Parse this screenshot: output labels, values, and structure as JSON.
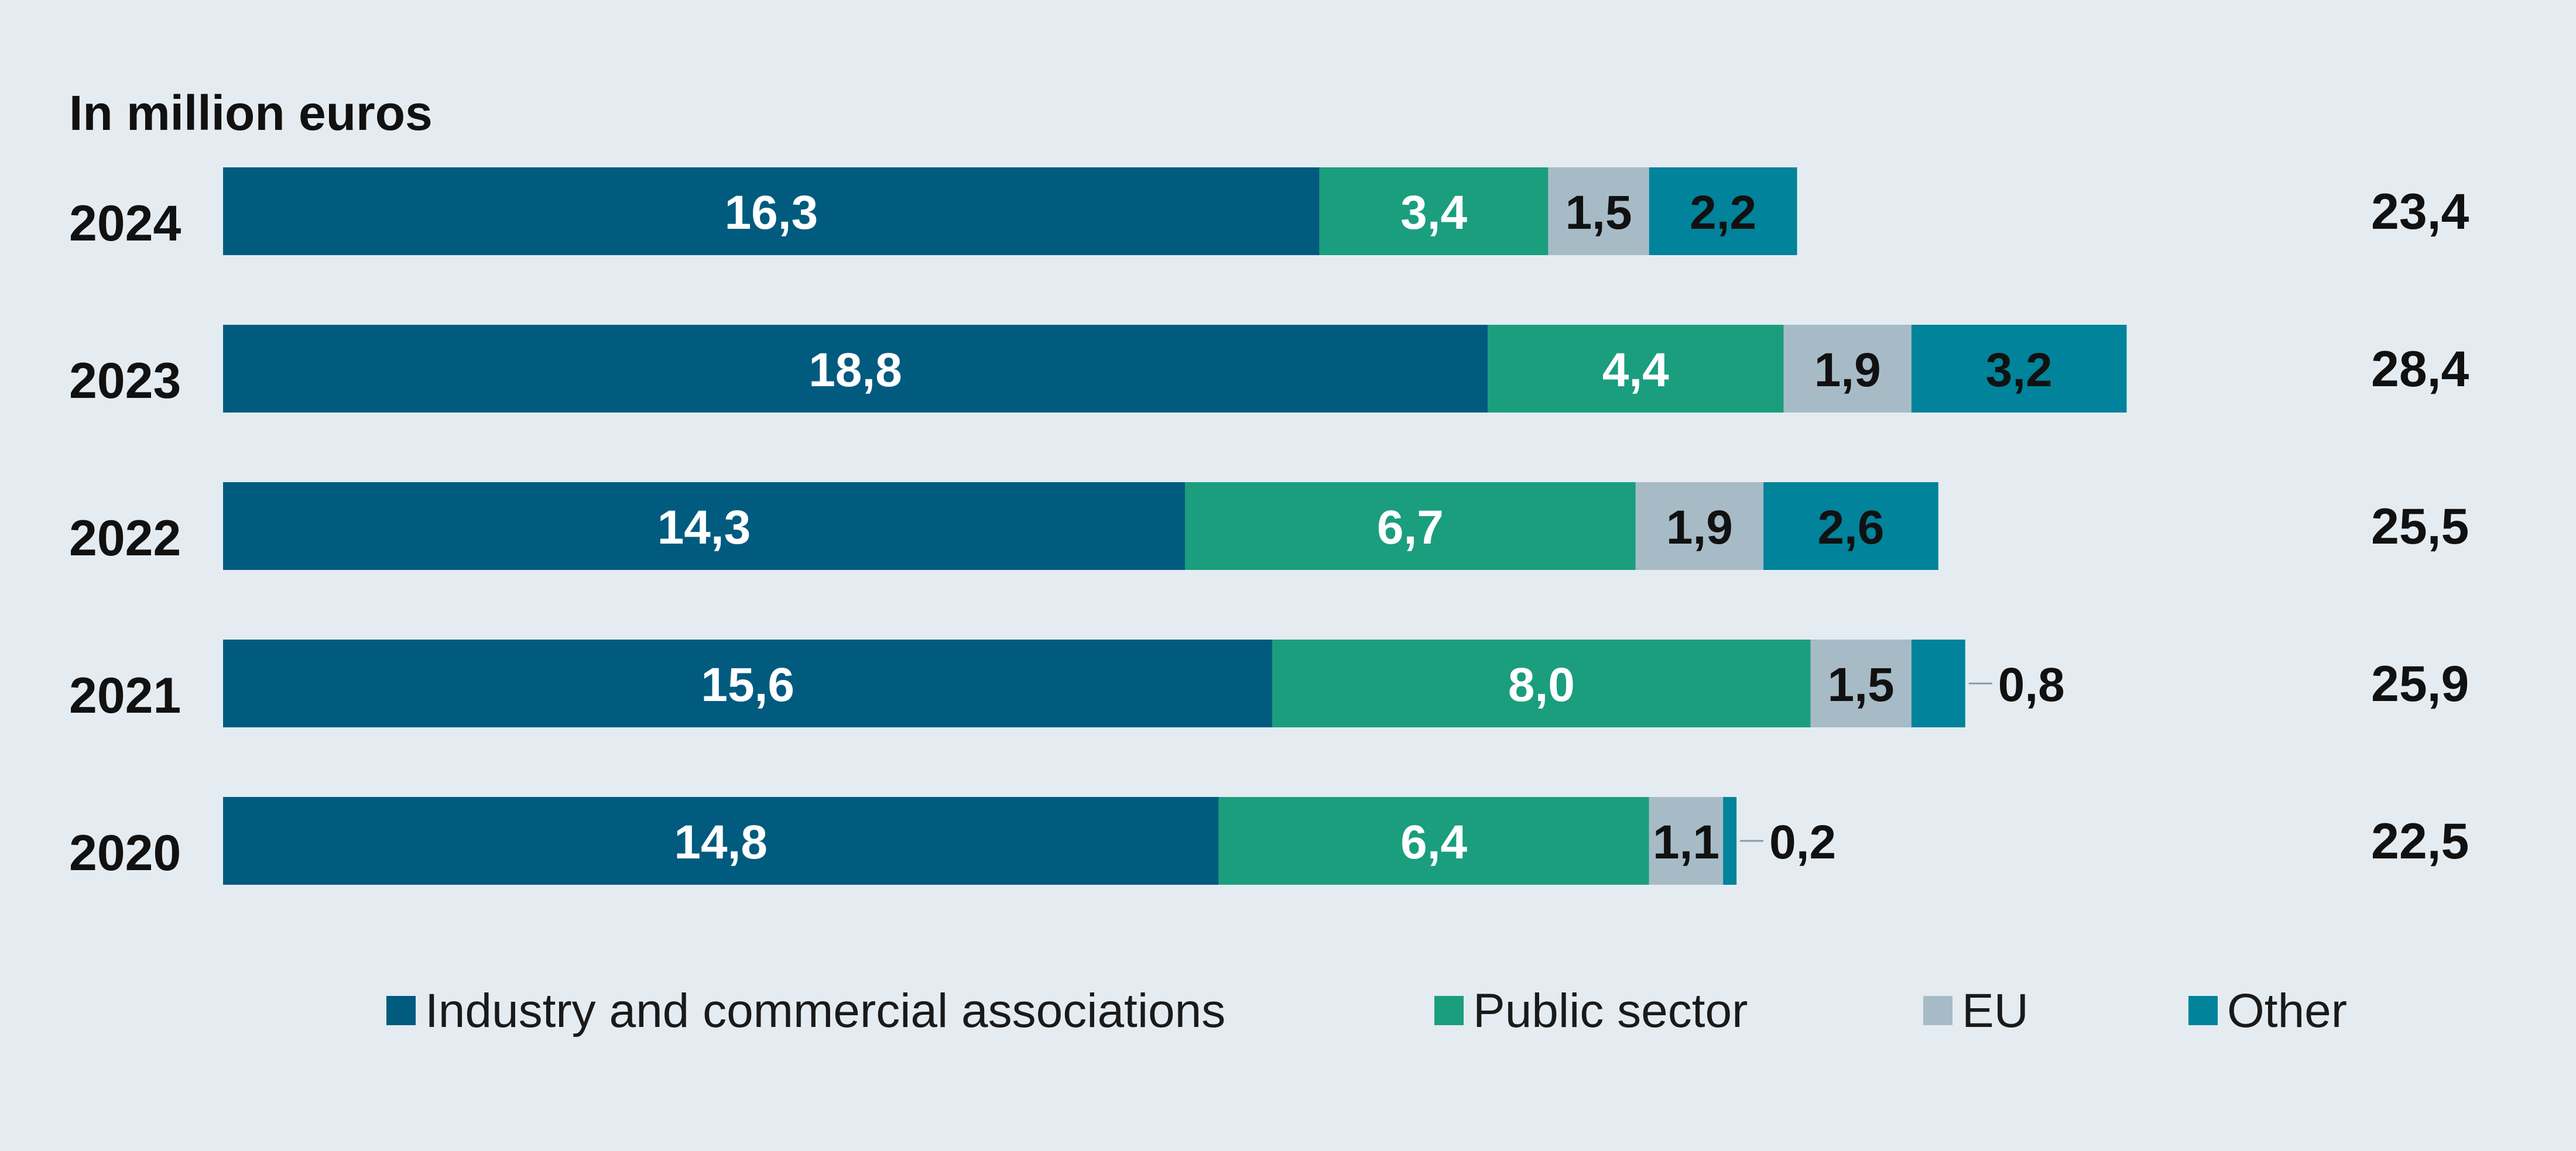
{
  "chart_data": {
    "type": "bar",
    "orientation": "horizontal",
    "stacked": true,
    "unit_label": "In million euros",
    "decimal_separator": ",",
    "categories": [
      "2024",
      "2023",
      "2022",
      "2021",
      "2020"
    ],
    "series": [
      {
        "name": "Industry and commercial associations",
        "color": "#005b7f",
        "label_color": "#ffffff",
        "values": [
          16.3,
          18.8,
          14.3,
          15.6,
          14.8
        ]
      },
      {
        "name": "Public sector",
        "color": "#1a9e7e",
        "label_color": "#ffffff",
        "values": [
          3.4,
          4.4,
          6.7,
          8.0,
          6.4
        ]
      },
      {
        "name": "EU",
        "color": "#a7bbc7",
        "label_color": "#111111",
        "values": [
          1.5,
          1.9,
          1.9,
          1.5,
          1.1
        ]
      },
      {
        "name": "Other",
        "color": "#00839b",
        "label_color": "#111111",
        "values": [
          2.2,
          3.2,
          2.6,
          0.8,
          0.2
        ]
      }
    ],
    "value_labels": [
      [
        "16,3",
        "3,4",
        "1,5",
        "2,2"
      ],
      [
        "18,8",
        "4,4",
        "1,9",
        "3,2"
      ],
      [
        "14,3",
        "6,7",
        "1,9",
        "2,6"
      ],
      [
        "15,6",
        "8,0",
        "1,5",
        "0,8"
      ],
      [
        "14,8",
        "6,4",
        "1,1",
        "0,2"
      ]
    ],
    "outside_labels": [
      false,
      false,
      false,
      true,
      true
    ],
    "totals": [
      "23,4",
      "28,4",
      "25,5",
      "25,9",
      "22,5"
    ],
    "xlim": [
      0,
      28.4
    ],
    "legend_position": "bottom"
  }
}
